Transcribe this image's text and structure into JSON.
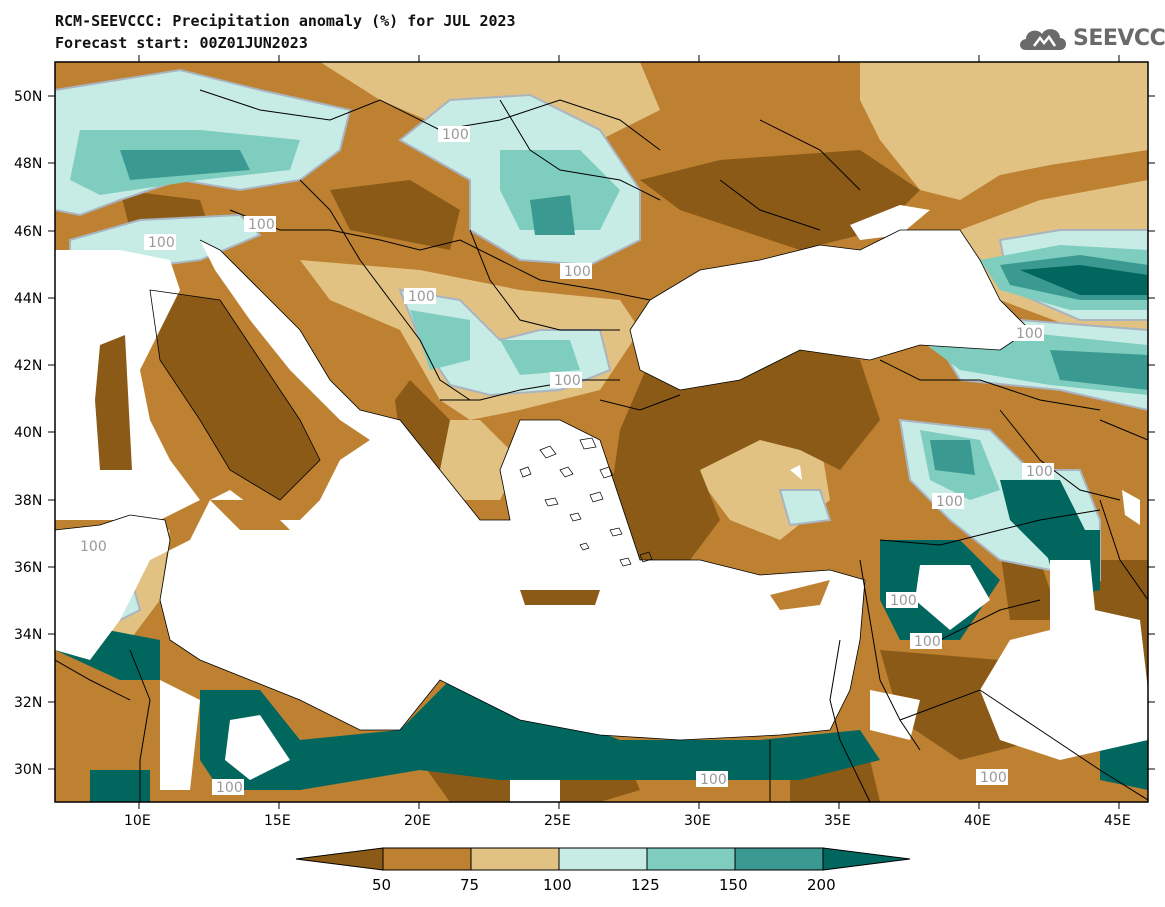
{
  "header": {
    "title": "RCM-SEEVCCC: Precipitation anomaly (%) for JUL 2023",
    "subtitle": "Forecast start: 00Z01JUN2023",
    "logo_text": "SEEVCCC"
  },
  "map": {
    "latitude_labels": [
      "50N",
      "48N",
      "46N",
      "44N",
      "42N",
      "40N",
      "38N",
      "36N",
      "34N",
      "32N",
      "30N"
    ],
    "longitude_labels": [
      "10E",
      "15E",
      "20E",
      "25E",
      "30E",
      "35E",
      "40E",
      "45E"
    ],
    "contour_labels": [
      "100",
      "100",
      "100",
      "100",
      "100",
      "100",
      "100",
      "100",
      "100",
      "100",
      "100",
      "100",
      "100",
      "100",
      "100"
    ]
  },
  "legend": {
    "levels": [
      "50",
      "75",
      "100",
      "125",
      "150",
      "200"
    ],
    "colors": [
      "#8b5a17",
      "#bd8131",
      "#e1c283",
      "#c6ece5",
      "#7fcdbf",
      "#3a9991",
      "#01665e"
    ]
  },
  "palette": {
    "sea": "#ffffff",
    "contour_line": "#a9b4c0",
    "border": "#000000"
  }
}
